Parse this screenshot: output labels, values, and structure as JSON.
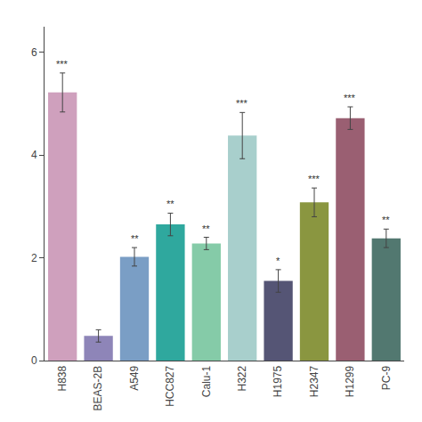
{
  "chart_data": {
    "type": "bar",
    "categories": [
      "H838",
      "BEAS-2B",
      "A549",
      "HCC827",
      "Calu-1",
      "H322",
      "H1975",
      "H2347",
      "H1299",
      "PC-9"
    ],
    "values": [
      5.22,
      0.48,
      2.02,
      2.65,
      2.28,
      4.38,
      1.55,
      3.08,
      4.72,
      2.38
    ],
    "errors": [
      0.38,
      0.12,
      0.18,
      0.22,
      0.12,
      0.45,
      0.22,
      0.28,
      0.22,
      0.18
    ],
    "annotations": [
      "***",
      null,
      "**",
      "**",
      "**",
      "***",
      "*",
      "***",
      "***",
      "**"
    ],
    "colors": [
      "#CFA0BD",
      "#8E85B8",
      "#7A9EC5",
      "#2FA89E",
      "#85CBA8",
      "#A8CFCC",
      "#555575",
      "#8A9640",
      "#9A5F72",
      "#527870"
    ],
    "ylim": [
      0,
      6.5
    ],
    "yticks": [
      0,
      2,
      4,
      6
    ],
    "grid": false
  }
}
